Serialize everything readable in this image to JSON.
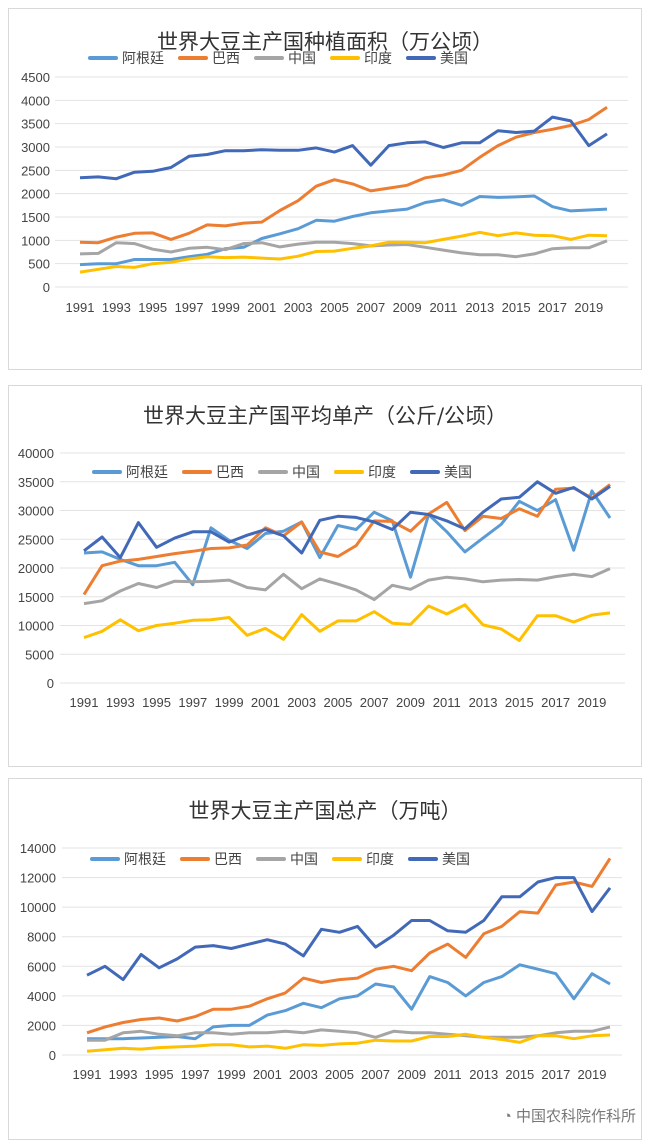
{
  "colors": {
    "argentina": "#5B9BD5",
    "brazil": "#ED7D31",
    "china": "#A5A5A5",
    "india": "#FFC000",
    "usa": "#4169B8"
  },
  "watermark": "中国农科院作科所",
  "chart_data": [
    {
      "type": "line",
      "title": "世界大豆主产国种植面积（万公顷）",
      "ylim": [
        0,
        4500
      ],
      "ystep": 500,
      "x": [
        1991,
        1992,
        1993,
        1994,
        1995,
        1996,
        1997,
        1998,
        1999,
        2000,
        2001,
        2002,
        2003,
        2004,
        2005,
        2006,
        2007,
        2008,
        2009,
        2010,
        2011,
        2012,
        2013,
        2014,
        2015,
        2016,
        2017,
        2018,
        2019,
        2020
      ],
      "xticks": [
        "1991",
        "1993",
        "1995",
        "1997",
        "1999",
        "2001",
        "2003",
        "2005",
        "2007",
        "2009",
        "2011",
        "2013",
        "2015",
        "2017",
        "2019"
      ],
      "yticks": [
        "0",
        "500",
        "1000",
        "1500",
        "2000",
        "2500",
        "3000",
        "3500",
        "4000",
        "4500"
      ],
      "legend": "top",
      "series": [
        {
          "name": "阿根廷",
          "key": "argentina",
          "values": [
            480,
            500,
            500,
            590,
            590,
            590,
            650,
            700,
            820,
            850,
            1040,
            1140,
            1250,
            1430,
            1410,
            1510,
            1590,
            1630,
            1670,
            1810,
            1870,
            1750,
            1940,
            1920,
            1930,
            1950,
            1720,
            1630,
            1650,
            1670
          ]
        },
        {
          "name": "巴西",
          "key": "brazil",
          "values": [
            960,
            950,
            1070,
            1150,
            1160,
            1020,
            1150,
            1330,
            1310,
            1370,
            1390,
            1640,
            1850,
            2160,
            2300,
            2210,
            2060,
            2120,
            2180,
            2340,
            2400,
            2500,
            2780,
            3030,
            3210,
            3310,
            3380,
            3460,
            3590,
            3850
          ]
        },
        {
          "name": "中国",
          "key": "china",
          "values": [
            710,
            720,
            950,
            930,
            810,
            750,
            830,
            850,
            800,
            930,
            950,
            860,
            920,
            960,
            960,
            930,
            880,
            900,
            910,
            850,
            790,
            730,
            690,
            690,
            650,
            710,
            820,
            840,
            840,
            990
          ]
        },
        {
          "name": "印度",
          "key": "india",
          "values": [
            320,
            380,
            440,
            420,
            500,
            530,
            600,
            650,
            630,
            640,
            620,
            600,
            660,
            760,
            770,
            830,
            880,
            960,
            960,
            950,
            1020,
            1090,
            1170,
            1100,
            1160,
            1110,
            1100,
            1020,
            1110,
            1100
          ]
        },
        {
          "name": "美国",
          "key": "usa",
          "values": [
            2340,
            2360,
            2320,
            2460,
            2480,
            2560,
            2800,
            2840,
            2920,
            2920,
            2940,
            2930,
            2930,
            2980,
            2890,
            3030,
            2610,
            3030,
            3090,
            3110,
            2990,
            3090,
            3090,
            3350,
            3310,
            3340,
            3640,
            3560,
            3030,
            3280
          ]
        }
      ]
    },
    {
      "type": "line",
      "title": "世界大豆主产国平均单产（公斤/公顷）",
      "ylim": [
        0,
        40000
      ],
      "ystep": 5000,
      "x": [
        1991,
        1992,
        1993,
        1994,
        1995,
        1996,
        1997,
        1998,
        1999,
        2000,
        2001,
        2002,
        2003,
        2004,
        2005,
        2006,
        2007,
        2008,
        2009,
        2010,
        2011,
        2012,
        2013,
        2014,
        2015,
        2016,
        2017,
        2018,
        2019,
        2020
      ],
      "xticks": [
        "1991",
        "1993",
        "1995",
        "1997",
        "1999",
        "2001",
        "2003",
        "2005",
        "2007",
        "2009",
        "2011",
        "2013",
        "2015",
        "2017",
        "2019"
      ],
      "yticks": [
        "0",
        "5000",
        "10000",
        "15000",
        "20000",
        "25000",
        "30000",
        "35000",
        "40000"
      ],
      "legend": "top",
      "series": [
        {
          "name": "阿根廷",
          "key": "argentina",
          "values": [
            22600,
            22800,
            21500,
            20400,
            20400,
            21000,
            17100,
            27000,
            24800,
            23400,
            26000,
            26400,
            28000,
            21800,
            27400,
            26700,
            29700,
            28200,
            18400,
            29300,
            26300,
            22800,
            25200,
            27600,
            31600,
            30000,
            31900,
            23100,
            33400,
            28700
          ]
        },
        {
          "name": "巴西",
          "key": "brazil",
          "values": [
            15400,
            20400,
            21200,
            21500,
            22000,
            22500,
            22900,
            23400,
            23500,
            24000,
            27000,
            25600,
            28000,
            22800,
            22000,
            23900,
            28200,
            28100,
            26400,
            29400,
            31400,
            26500,
            29000,
            28600,
            30300,
            29000,
            33700,
            33900,
            32200,
            34500
          ]
        },
        {
          "name": "中国",
          "key": "china",
          "values": [
            13800,
            14300,
            16000,
            17300,
            16600,
            17700,
            17600,
            17700,
            17900,
            16600,
            16200,
            18900,
            16400,
            18100,
            17200,
            16200,
            14500,
            17000,
            16300,
            17900,
            18400,
            18100,
            17600,
            17900,
            18000,
            17900,
            18500,
            18900,
            18500,
            19900
          ]
        },
        {
          "name": "印度",
          "key": "india",
          "values": [
            7900,
            9000,
            11000,
            9100,
            10000,
            10400,
            10900,
            11000,
            11400,
            8300,
            9500,
            7600,
            11900,
            9000,
            10800,
            10800,
            12400,
            10400,
            10200,
            13400,
            12000,
            13600,
            10100,
            9400,
            7400,
            11700,
            11700,
            10600,
            11800,
            12200
          ]
        },
        {
          "name": "美国",
          "key": "usa",
          "values": [
            23000,
            25400,
            21800,
            27900,
            23600,
            25200,
            26300,
            26300,
            24500,
            25700,
            26700,
            25600,
            22600,
            28300,
            29000,
            28800,
            28000,
            26700,
            29700,
            29300,
            28200,
            26800,
            29700,
            32000,
            32300,
            35000,
            33000,
            34000,
            32000,
            34200
          ]
        }
      ]
    },
    {
      "type": "line",
      "title": "世界大豆主产国总产（万吨）",
      "ylim": [
        0,
        14000
      ],
      "ystep": 2000,
      "x": [
        1991,
        1992,
        1993,
        1994,
        1995,
        1996,
        1997,
        1998,
        1999,
        2000,
        2001,
        2002,
        2003,
        2004,
        2005,
        2006,
        2007,
        2008,
        2009,
        2010,
        2011,
        2012,
        2013,
        2014,
        2015,
        2016,
        2017,
        2018,
        2019,
        2020
      ],
      "xticks": [
        "1991",
        "1993",
        "1995",
        "1997",
        "1999",
        "2001",
        "2003",
        "2005",
        "2007",
        "2009",
        "2011",
        "2013",
        "2015",
        "2017",
        "2019"
      ],
      "yticks": [
        "0",
        "2000",
        "4000",
        "6000",
        "8000",
        "10000",
        "12000",
        "14000"
      ],
      "legend": "top",
      "series": [
        {
          "name": "阿根廷",
          "key": "argentina",
          "values": [
            1100,
            1100,
            1100,
            1150,
            1200,
            1250,
            1100,
            1900,
            2000,
            2000,
            2700,
            3000,
            3500,
            3200,
            3800,
            4000,
            4800,
            4600,
            3100,
            5300,
            4900,
            4000,
            4900,
            5300,
            6100,
            5800,
            5500,
            3800,
            5500,
            4800
          ]
        },
        {
          "name": "巴西",
          "key": "brazil",
          "values": [
            1500,
            1900,
            2200,
            2400,
            2500,
            2300,
            2600,
            3100,
            3100,
            3300,
            3800,
            4200,
            5200,
            4900,
            5100,
            5200,
            5800,
            6000,
            5700,
            6900,
            7500,
            6600,
            8200,
            8700,
            9700,
            9600,
            11500,
            11700,
            11400,
            13300
          ]
        },
        {
          "name": "中国",
          "key": "china",
          "values": [
            1000,
            1000,
            1500,
            1600,
            1400,
            1300,
            1500,
            1500,
            1400,
            1500,
            1500,
            1600,
            1500,
            1700,
            1600,
            1500,
            1200,
            1600,
            1500,
            1500,
            1400,
            1300,
            1200,
            1200,
            1200,
            1300,
            1500,
            1600,
            1600,
            1900
          ]
        },
        {
          "name": "印度",
          "key": "india",
          "values": [
            250,
            350,
            450,
            400,
            500,
            550,
            600,
            700,
            700,
            550,
            600,
            450,
            700,
            650,
            750,
            800,
            1000,
            950,
            950,
            1250,
            1250,
            1400,
            1200,
            1050,
            850,
            1300,
            1300,
            1100,
            1300,
            1350
          ]
        },
        {
          "name": "美国",
          "key": "usa",
          "values": [
            5400,
            6000,
            5100,
            6800,
            5900,
            6500,
            7300,
            7400,
            7200,
            7500,
            7800,
            7500,
            6700,
            8500,
            8300,
            8700,
            7300,
            8100,
            9100,
            9100,
            8400,
            8300,
            9100,
            10700,
            10700,
            11700,
            12000,
            12000,
            9700,
            11300
          ]
        }
      ]
    }
  ]
}
